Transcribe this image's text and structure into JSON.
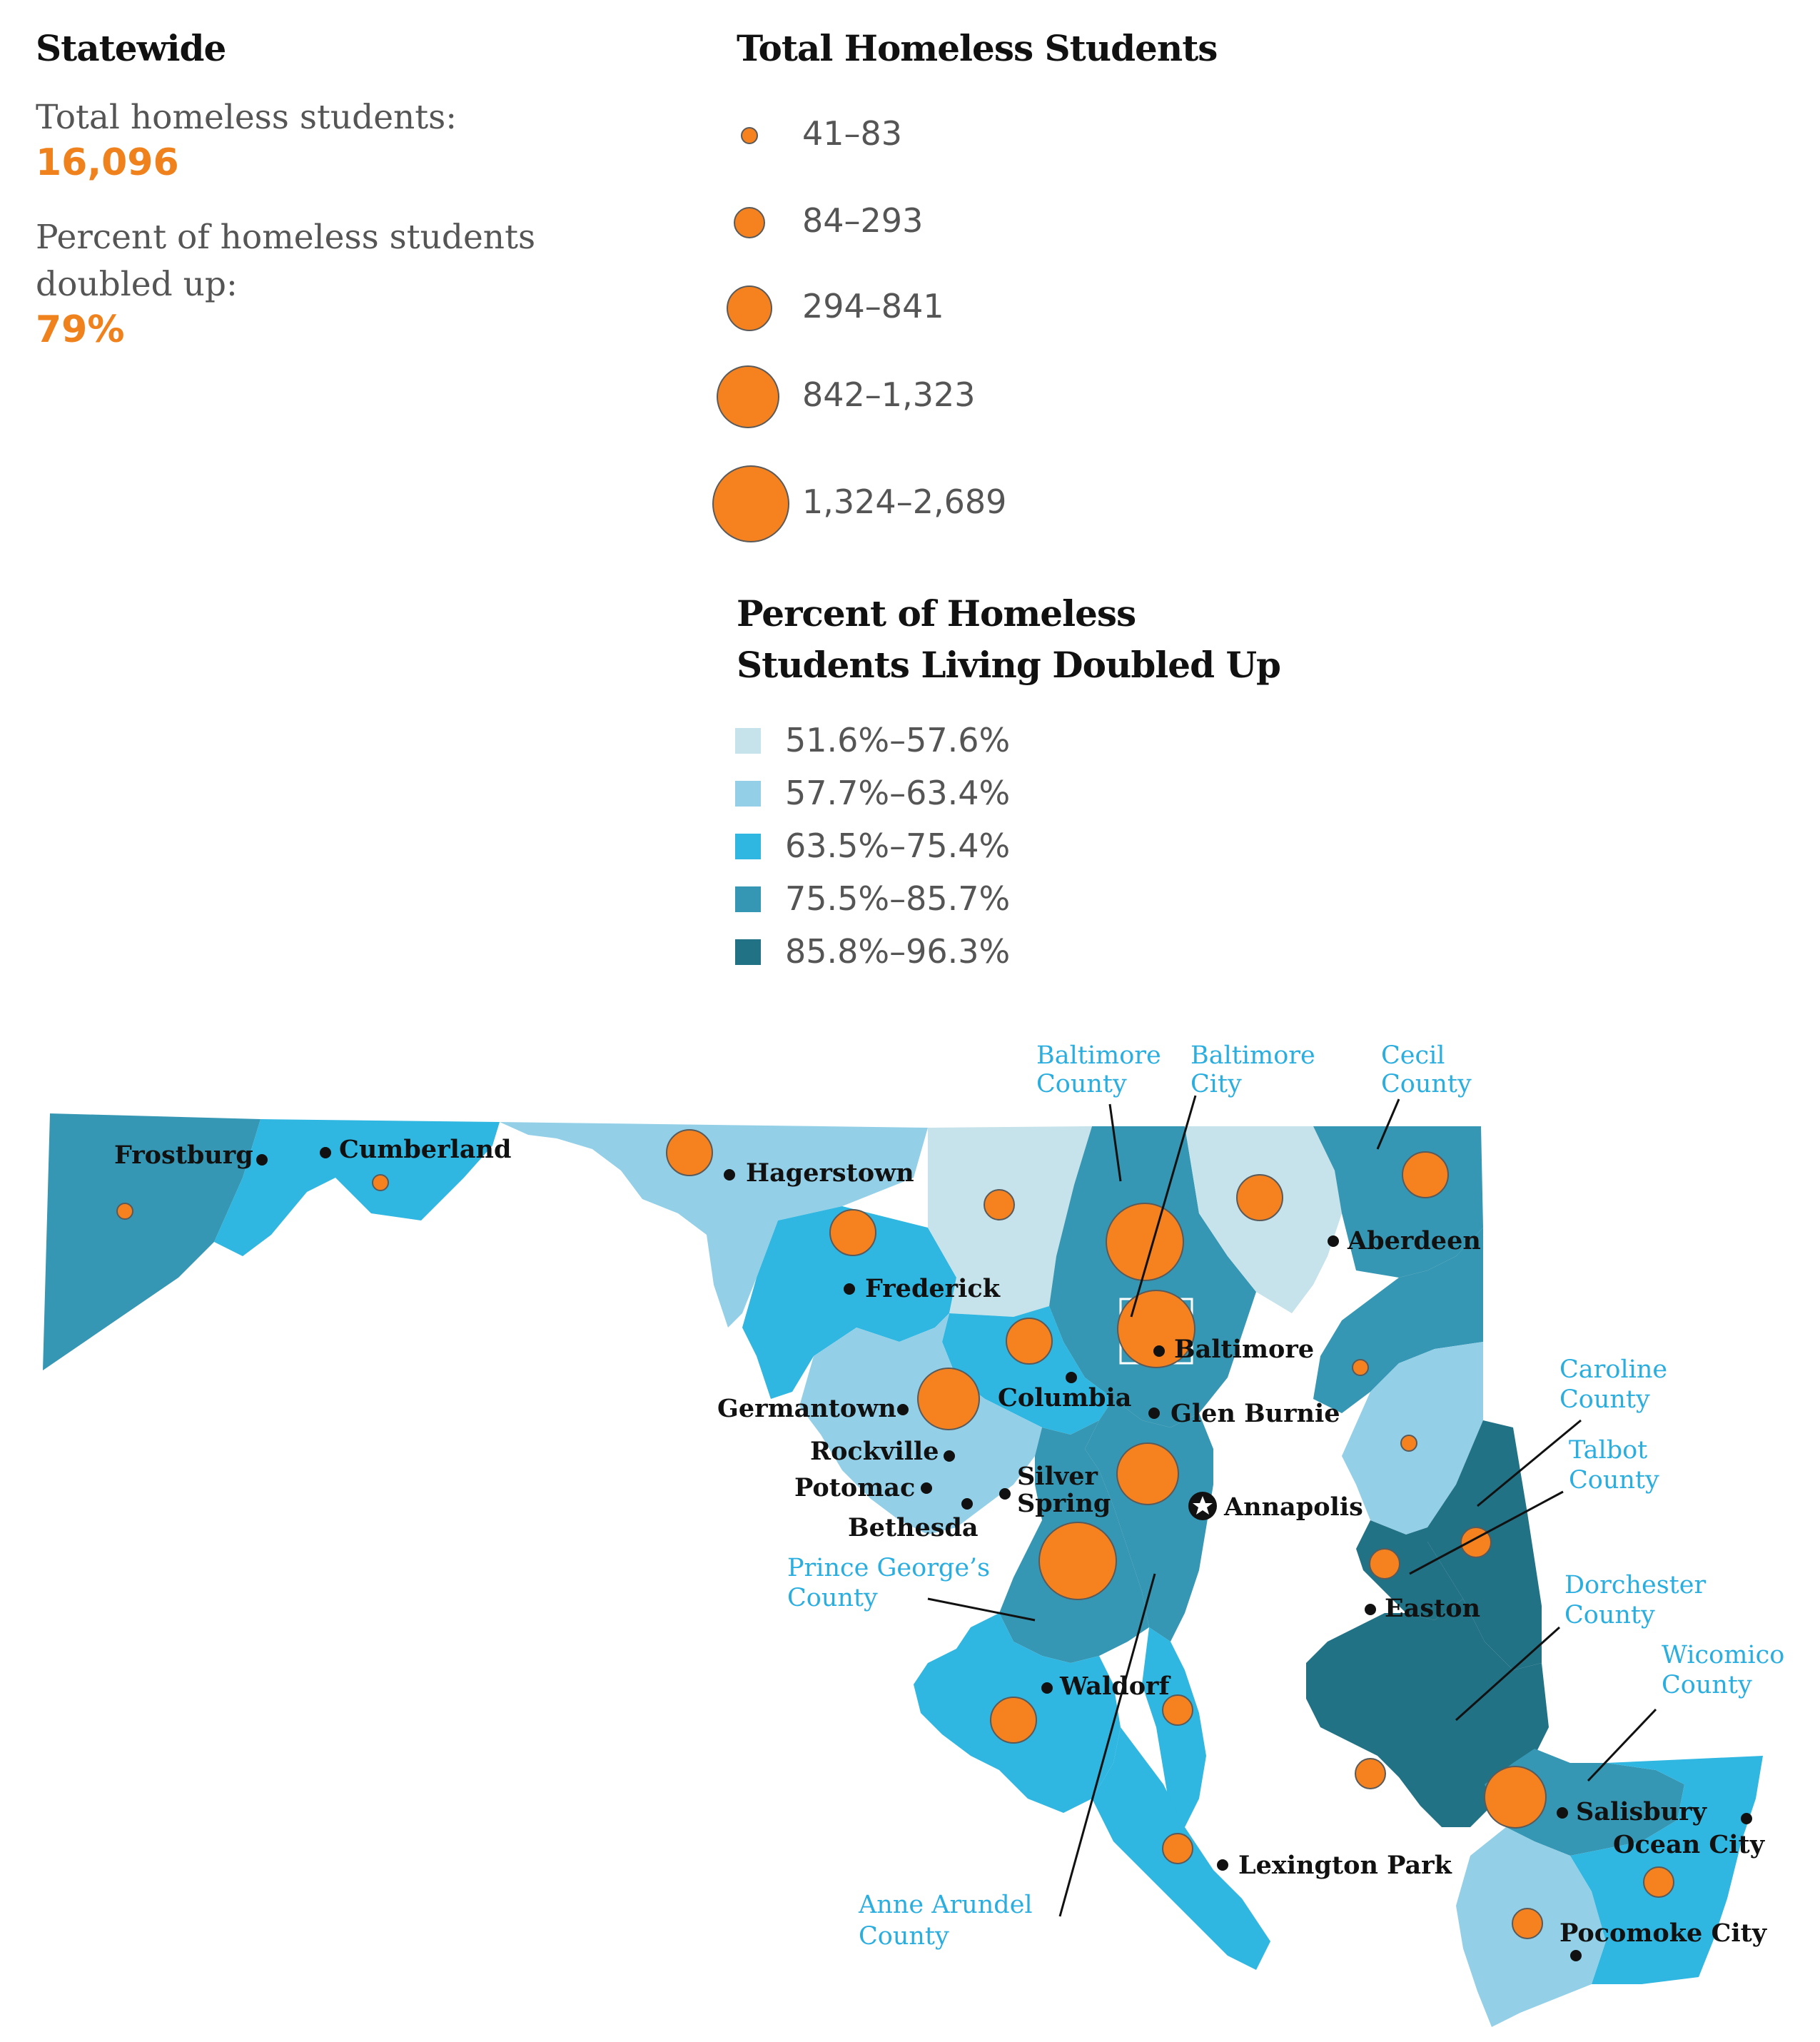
{
  "statewide": {
    "heading": "Statewide",
    "total_label": "Total homeless students:",
    "total_value": "16,096",
    "doubled_label_line1": "Percent of homeless students",
    "doubled_label_line2": "doubled up:",
    "doubled_value": "79%"
  },
  "size_legend": {
    "title": "Total Homeless Students",
    "bins": [
      {
        "label": "41–83",
        "min": 41,
        "max": 83
      },
      {
        "label": "84–293",
        "min": 84,
        "max": 293
      },
      {
        "label": "294–841",
        "min": 294,
        "max": 841
      },
      {
        "label": "842–1,323",
        "min": 842,
        "max": 1323
      },
      {
        "label": "1,324–2,689",
        "min": 1324,
        "max": 2689
      }
    ]
  },
  "color_legend": {
    "title_line1": "Percent of Homeless",
    "title_line2": "Students Living Doubled Up",
    "bins": [
      {
        "label": "51.6%–57.6%",
        "color": "#c6e2ea"
      },
      {
        "label": "57.7%–63.4%",
        "color": "#93d0e8"
      },
      {
        "label": "63.5%–75.4%",
        "color": "#2fb6e1"
      },
      {
        "label": "75.5%–85.7%",
        "color": "#3597b3"
      },
      {
        "label": "85.8%–96.3%",
        "color": "#227286"
      }
    ]
  },
  "map": {
    "colors": {
      "marker": "#f5821f",
      "marker_stroke": "#5a5a5a",
      "city_label": "#111111",
      "county_label": "#2aaee0",
      "water": "#ffffff"
    },
    "cities": [
      {
        "name": "Frostburg"
      },
      {
        "name": "Cumberland"
      },
      {
        "name": "Hagerstown"
      },
      {
        "name": "Frederick"
      },
      {
        "name": "Aberdeen"
      },
      {
        "name": "Baltimore"
      },
      {
        "name": "Columbia"
      },
      {
        "name": "Germantown"
      },
      {
        "name": "Glen Burnie"
      },
      {
        "name": "Rockville"
      },
      {
        "name": "Potomac"
      },
      {
        "name": "Silver"
      },
      {
        "name": "Spring"
      },
      {
        "name": "Bethesda"
      },
      {
        "name": "Annapolis"
      },
      {
        "name": "Easton"
      },
      {
        "name": "Waldorf"
      },
      {
        "name": "Lexington Park"
      },
      {
        "name": "Salisbury"
      },
      {
        "name": "Ocean City"
      },
      {
        "name": "Pocomoke City"
      }
    ],
    "county_callouts": [
      {
        "line1": "Baltimore",
        "line2": "County"
      },
      {
        "line1": "Baltimore",
        "line2": "City"
      },
      {
        "line1": "Cecil",
        "line2": "County"
      },
      {
        "line1": "Caroline",
        "line2": "County"
      },
      {
        "line1": "Talbot",
        "line2": "County"
      },
      {
        "line1": "Prince George’s",
        "line2": "County"
      },
      {
        "line1": "Dorchester",
        "line2": "County"
      },
      {
        "line1": "Wicomico",
        "line2": "County"
      },
      {
        "line1": "Anne Arundel",
        "line2": "County"
      }
    ]
  }
}
